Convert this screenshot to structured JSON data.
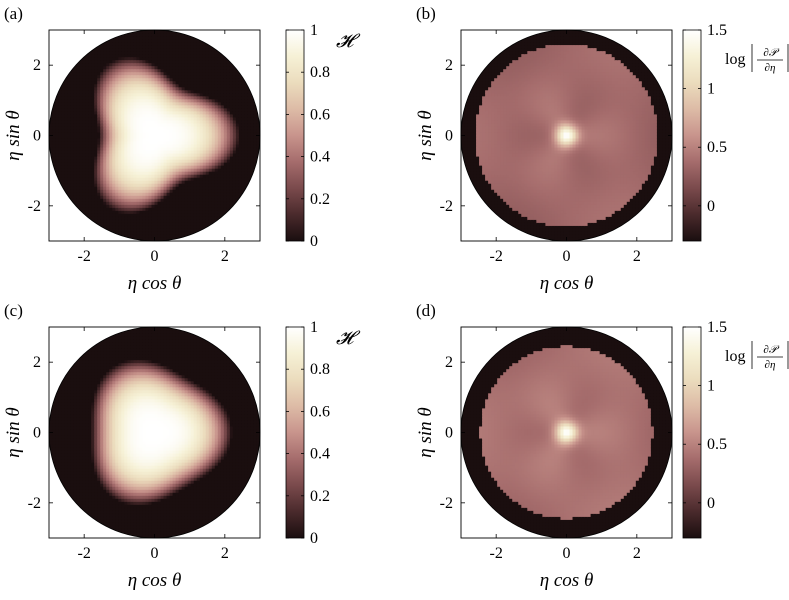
{
  "figure": {
    "panels": [
      {
        "label": "(a)",
        "quantity": "H",
        "cbar_label": "𝓗",
        "cbar_ticks": [
          "0",
          "0.2",
          "0.4",
          "0.6",
          "0.8",
          "1"
        ]
      },
      {
        "label": "(b)",
        "quantity": "logdP",
        "cbar_label_log": "log",
        "cbar_label_num": "∂𝒫",
        "cbar_label_den": "∂η",
        "cbar_ticks": [
          "0",
          "0.5",
          "1",
          "1.5"
        ]
      },
      {
        "label": "(c)",
        "quantity": "H",
        "cbar_label": "𝓗",
        "cbar_ticks": [
          "0",
          "0.2",
          "0.4",
          "0.6",
          "0.8",
          "1"
        ]
      },
      {
        "label": "(d)",
        "quantity": "logdP",
        "cbar_label_log": "log",
        "cbar_label_num": "∂𝒫",
        "cbar_label_den": "∂η",
        "cbar_ticks": [
          "0",
          "0.5",
          "1",
          "1.5"
        ]
      }
    ],
    "xlabel": "η cos θ",
    "ylabel": "η sin θ",
    "xticks": [
      "-2",
      "0",
      "2"
    ],
    "yticks": [
      "-2",
      "0",
      "2"
    ],
    "colormap": [
      "#1a0e0f",
      "#4a2a2c",
      "#7a4a4c",
      "#a56c6c",
      "#c8948c",
      "#ddbba6",
      "#ebdcbd",
      "#f6f1d6",
      "#ffffff"
    ]
  },
  "chart_data": [
    {
      "panel": "(a)",
      "type": "heatmap",
      "xlabel": "η cos θ",
      "ylabel": "η sin θ",
      "xlim": [
        -3,
        3
      ],
      "ylim": [
        -3,
        3
      ],
      "domain": "disk of radius 3",
      "colorbar": {
        "label": "𝓗",
        "range": [
          0,
          1
        ],
        "ticks": [
          0,
          0.2,
          0.4,
          0.6,
          0.8,
          1
        ]
      },
      "field": {
        "symmetry": "3-fold lobed",
        "lobe_directions_deg": [
          0,
          120,
          240
        ],
        "peak_value": 1,
        "outside_value": 0,
        "boundary_radius_mean": 2.0,
        "boundary_lobe_amplitude": 0.42
      }
    },
    {
      "panel": "(b)",
      "type": "heatmap",
      "xlabel": "η cos θ",
      "ylabel": "η sin θ",
      "xlim": [
        -3,
        3
      ],
      "ylim": [
        -3,
        3
      ],
      "domain": "disk of radius 3",
      "colorbar": {
        "label": "log |∂𝒫/∂η|",
        "range": [
          -0.3,
          1.5
        ],
        "ticks": [
          0,
          0.5,
          1,
          1.5
        ]
      },
      "field": {
        "symmetry": "3-fold",
        "center_peak": 1.5,
        "plateau_value": 0.4,
        "outside_value": -0.3,
        "plateau_radius": 2.6
      }
    },
    {
      "panel": "(c)",
      "type": "heatmap",
      "xlabel": "η cos θ",
      "ylabel": "η sin θ",
      "xlim": [
        -3,
        3
      ],
      "ylim": [
        -3,
        3
      ],
      "domain": "disk of radius 3",
      "colorbar": {
        "label": "𝓗",
        "range": [
          0,
          1
        ],
        "ticks": [
          0,
          0.2,
          0.4,
          0.6,
          0.8,
          1
        ]
      },
      "field": {
        "symmetry": "3-fold rounded triangle",
        "lobe_directions_deg": [
          0,
          120,
          240
        ],
        "peak_value": 1,
        "outside_value": 0,
        "boundary_radius_mean": 2.0,
        "boundary_lobe_amplitude": 0.2
      }
    },
    {
      "panel": "(d)",
      "type": "heatmap",
      "xlabel": "η cos θ",
      "ylabel": "η sin θ",
      "xlim": [
        -3,
        3
      ],
      "ylim": [
        -3,
        3
      ],
      "domain": "disk of radius 3",
      "colorbar": {
        "label": "log |∂𝒫/∂η|",
        "range": [
          -0.3,
          1.5
        ],
        "ticks": [
          0,
          0.5,
          1,
          1.5
        ]
      },
      "field": {
        "symmetry": "3-fold",
        "center_peak": 1.5,
        "plateau_value": 0.45,
        "outside_value": -0.3,
        "plateau_radius": 2.45
      }
    }
  ]
}
